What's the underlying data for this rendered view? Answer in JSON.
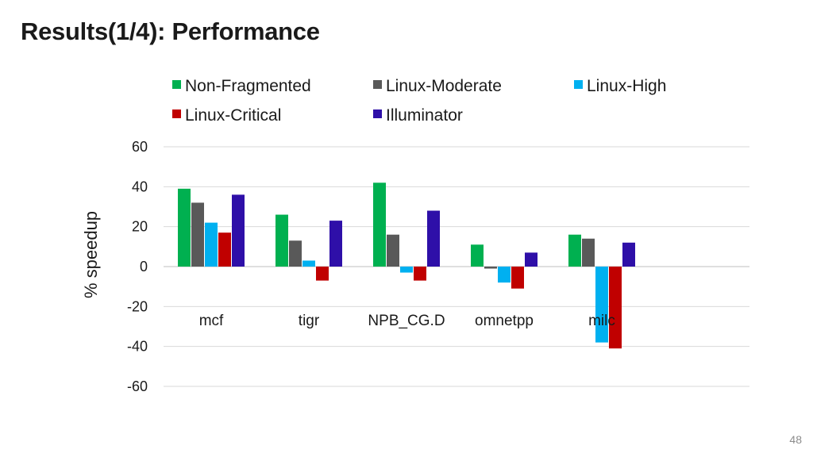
{
  "slide": {
    "title": "Results(1/4): Performance",
    "page_number": "48"
  },
  "chart_data": {
    "type": "bar",
    "title": "",
    "xlabel": "",
    "ylabel": "% speedup",
    "ylim": [
      -60,
      60
    ],
    "yticks": [
      60,
      40,
      20,
      0,
      -20,
      -40,
      -60
    ],
    "grid": true,
    "legend_position": "top",
    "categories": [
      "mcf",
      "tigr",
      "NPB_CG.D",
      "omnetpp",
      "milc"
    ],
    "series": [
      {
        "name": "Non-Fragmented",
        "color": "#00b050",
        "values": [
          39,
          26,
          42,
          11,
          16
        ]
      },
      {
        "name": "Linux-Moderate",
        "color": "#595959",
        "values": [
          32,
          13,
          16,
          -1,
          14
        ]
      },
      {
        "name": "Linux-High",
        "color": "#00b0f0",
        "values": [
          22,
          3,
          -3,
          -8,
          -38
        ]
      },
      {
        "name": "Linux-Critical",
        "color": "#c00000",
        "values": [
          17,
          -7,
          -7,
          -11,
          -41
        ]
      },
      {
        "name": "Illuminator",
        "color": "#2e0fa8",
        "values": [
          36,
          23,
          28,
          7,
          12
        ]
      }
    ]
  }
}
